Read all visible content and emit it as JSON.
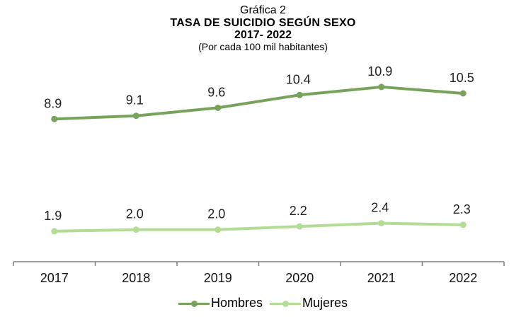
{
  "chart_data": {
    "type": "line",
    "title": "Gráfica 2",
    "subtitle": "TASA DE SUICIDIO SEGÚN SEXO",
    "period": "2017- 2022",
    "note": "(Por cada 100 mil habitantes)",
    "categories": [
      "2017",
      "2018",
      "2019",
      "2020",
      "2021",
      "2022"
    ],
    "series": [
      {
        "name": "Hombres",
        "values": [
          8.9,
          9.1,
          9.6,
          10.4,
          10.9,
          10.5
        ],
        "color": "#77a35a"
      },
      {
        "name": "Mujeres",
        "values": [
          1.9,
          2.0,
          2.0,
          2.2,
          2.4,
          2.3
        ],
        "color": "#b4dc94"
      }
    ],
    "ylim": [
      0,
      12
    ],
    "grid": false,
    "legend_position": "bottom",
    "axis_color": "#7f7f7f"
  }
}
